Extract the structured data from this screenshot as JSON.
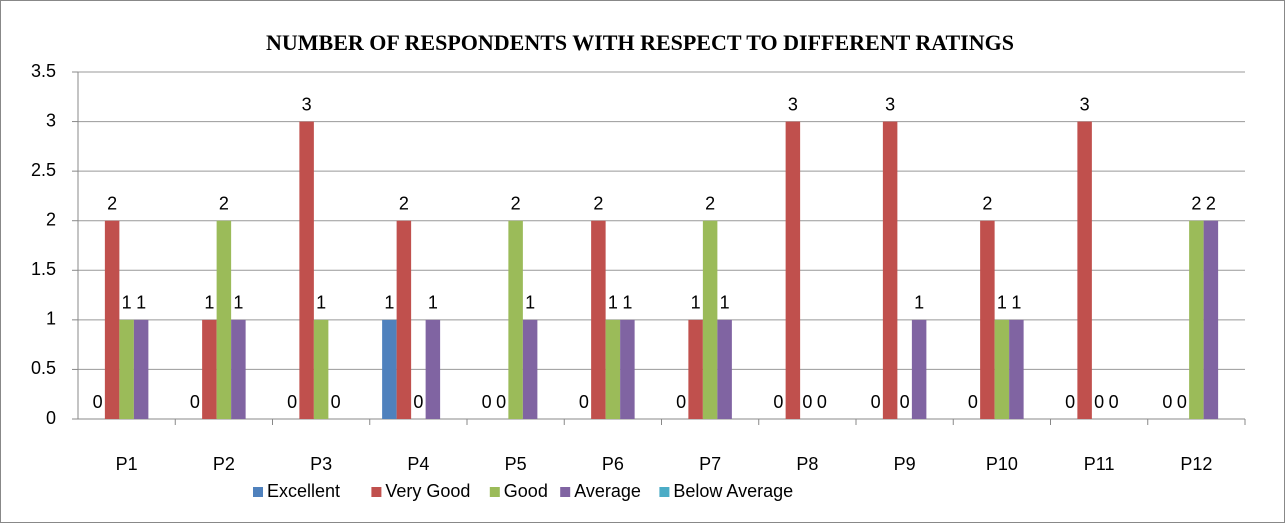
{
  "chart_data": {
    "type": "bar",
    "title": "NUMBER OF RESPONDENTS WITH RESPECT TO DIFFERENT RATINGS",
    "categories": [
      "P1",
      "P2",
      "P3",
      "P4",
      "P5",
      "P6",
      "P7",
      "P8",
      "P9",
      "P10",
      "P11",
      "P12"
    ],
    "series": [
      {
        "name": "Excellent",
        "color": "#4f81bd",
        "show_labels": true,
        "values": [
          0,
          0,
          0,
          1,
          0,
          0,
          0,
          0,
          0,
          0,
          0,
          0
        ]
      },
      {
        "name": "Very Good",
        "color": "#c0504d",
        "show_labels": true,
        "values": [
          2,
          1,
          3,
          2,
          0,
          2,
          1,
          3,
          3,
          2,
          3,
          0
        ]
      },
      {
        "name": "Good",
        "color": "#9bbb59",
        "show_labels": true,
        "values": [
          1,
          2,
          1,
          0,
          2,
          1,
          2,
          0,
          0,
          1,
          0,
          2
        ]
      },
      {
        "name": "Average",
        "color": "#8064a2",
        "show_labels": true,
        "values": [
          1,
          1,
          0,
          1,
          1,
          1,
          1,
          0,
          1,
          1,
          0,
          2
        ]
      },
      {
        "name": "Below Average",
        "color": "#4bacc6",
        "show_labels": false,
        "values": [
          0,
          0,
          0,
          0,
          0,
          0,
          0,
          0,
          0,
          0,
          0,
          0
        ]
      }
    ],
    "ylim": [
      0,
      3.5
    ],
    "yticks": [
      0,
      0.5,
      1,
      1.5,
      2,
      2.5,
      3,
      3.5
    ],
    "grid": true,
    "legend": "bottom"
  }
}
